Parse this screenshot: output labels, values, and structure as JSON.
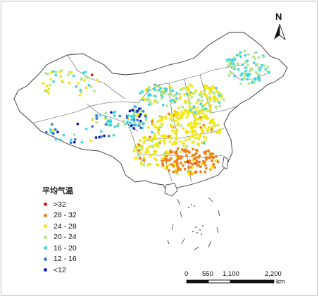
{
  "legend": {
    "title": "平均气温",
    "items": [
      {
        "label": ">32",
        "color": "#d7191c"
      },
      {
        "label": "28 - 32",
        "color": "#f07f1a"
      },
      {
        "label": "24 - 28",
        "color": "#f2e70f"
      },
      {
        "label": "20 - 24",
        "color": "#b4e68a"
      },
      {
        "label": "16 - 20",
        "color": "#3fd6e0"
      },
      {
        "label": "12 - 16",
        "color": "#3f7fd6"
      },
      {
        "label": "<12",
        "color": "#1a1ab4"
      }
    ]
  },
  "north_arrow": {
    "label": "N",
    "icon": "north-arrow-icon"
  },
  "scale_bar": {
    "ticks": [
      "0",
      "550",
      "1,100",
      "2,200"
    ],
    "unit": "km"
  }
}
